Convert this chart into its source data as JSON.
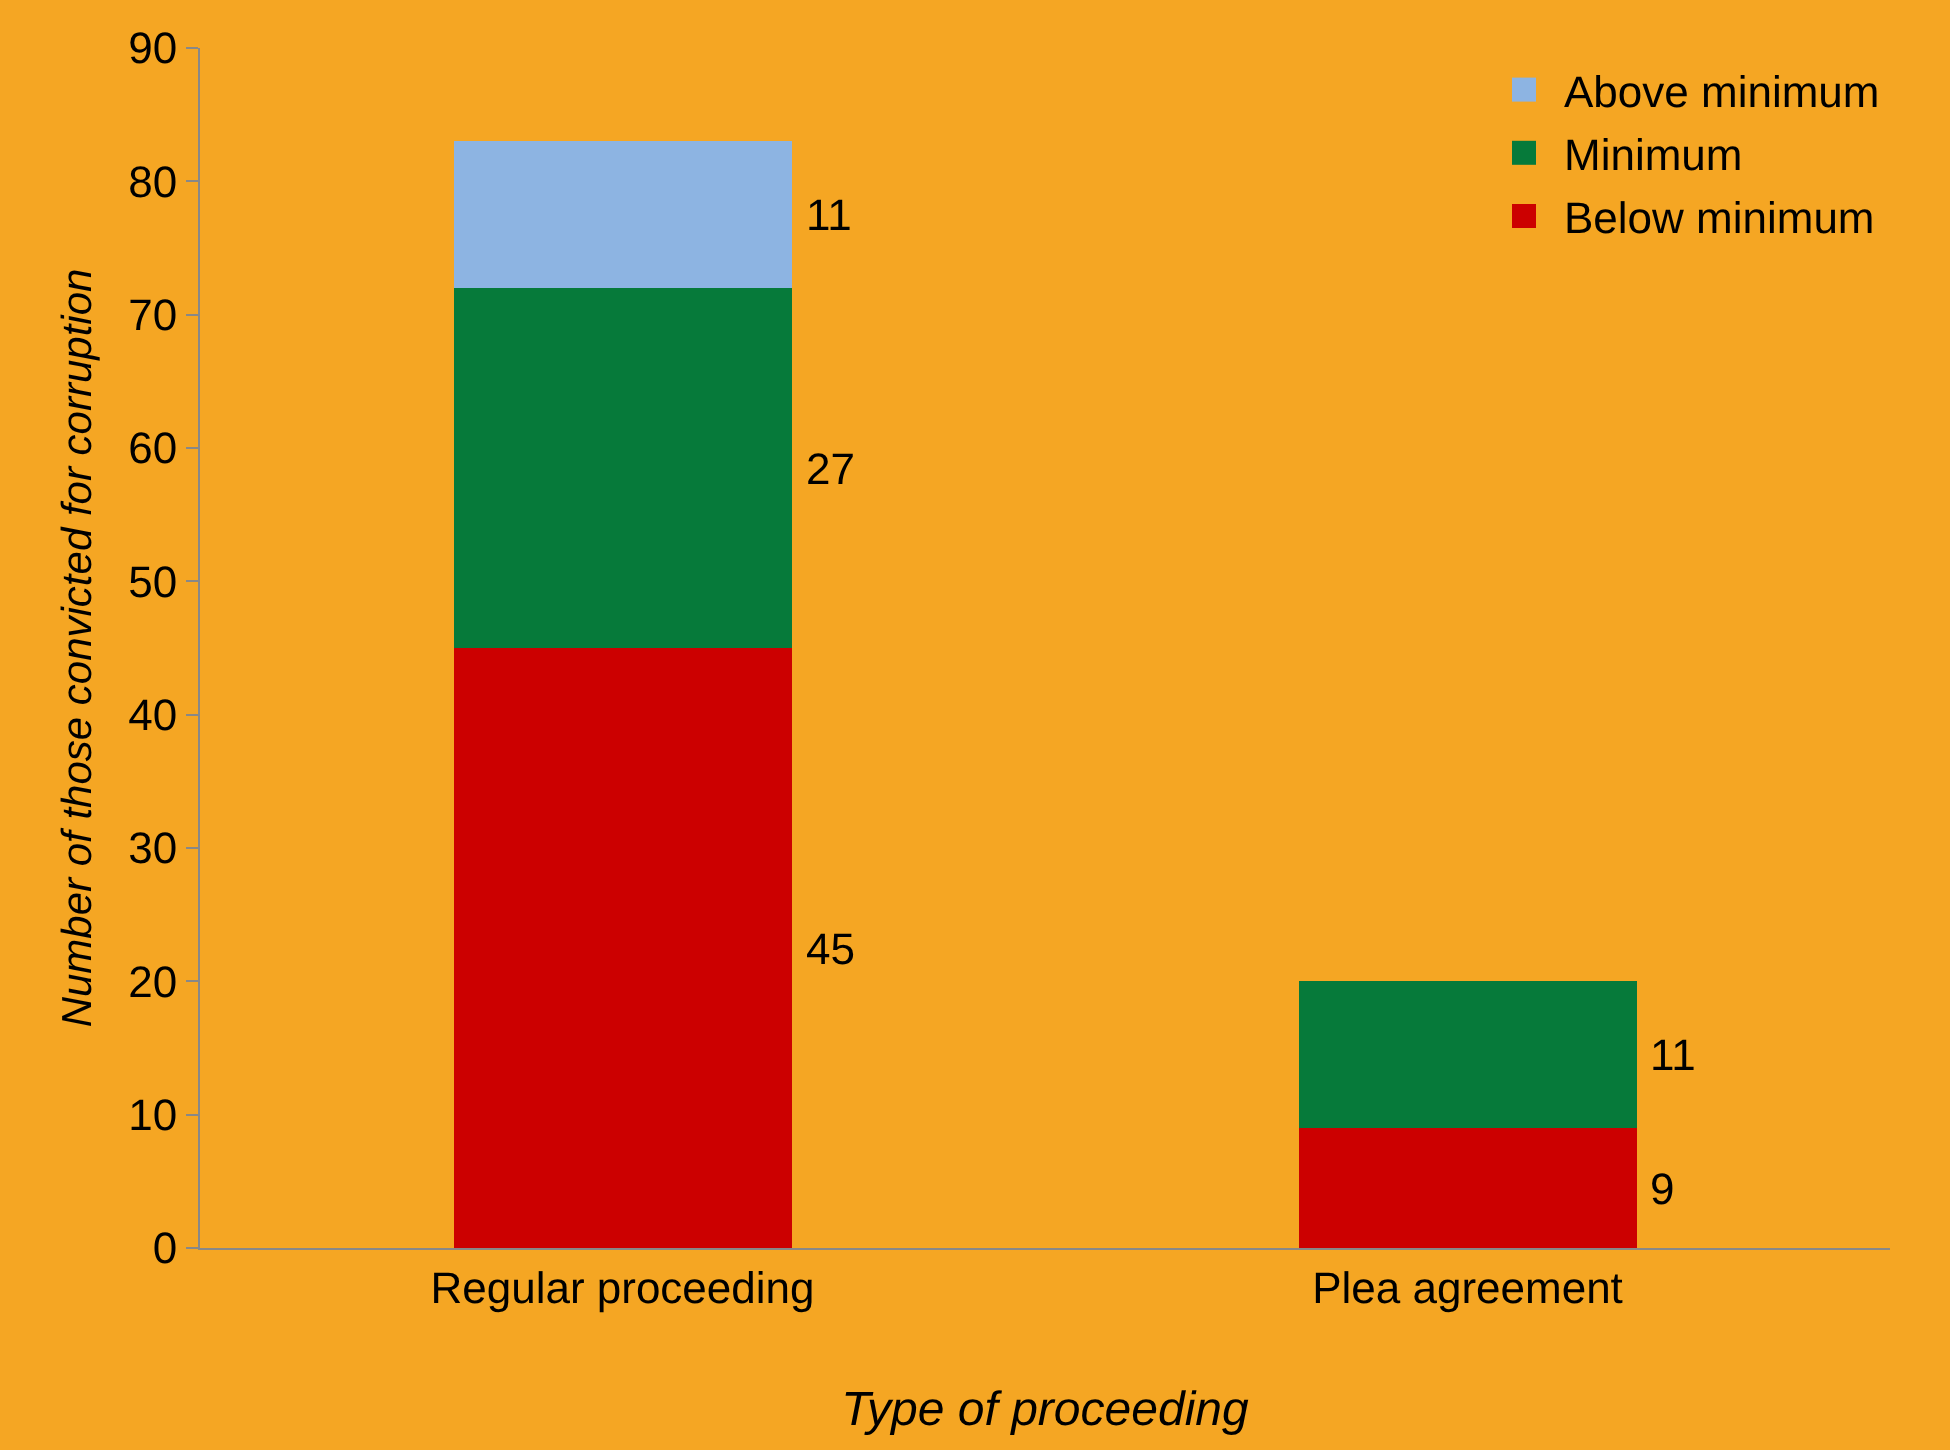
{
  "chart_data": {
    "type": "bar",
    "stacked": true,
    "xlabel": "Type of proceeding",
    "ylabel": "Number of those convicted for corruption",
    "categories": [
      "Regular proceeding",
      "Plea agreement"
    ],
    "series": [
      {
        "name": "Below minimum",
        "color": "#cc0000",
        "values": [
          45,
          9
        ],
        "value_labels": [
          "45",
          "9"
        ]
      },
      {
        "name": "Minimum",
        "color": "#067a3a",
        "values": [
          27,
          11
        ],
        "value_labels": [
          "27",
          "11"
        ]
      },
      {
        "name": "Above minimum",
        "color": "#8db4e2",
        "values": [
          11,
          null
        ],
        "value_labels": [
          "11",
          null
        ]
      }
    ],
    "ylim": [
      0,
      90
    ],
    "yticks": [
      0,
      10,
      20,
      30,
      40,
      50,
      60,
      70,
      80,
      90
    ],
    "grid": false,
    "legend": "top right"
  }
}
